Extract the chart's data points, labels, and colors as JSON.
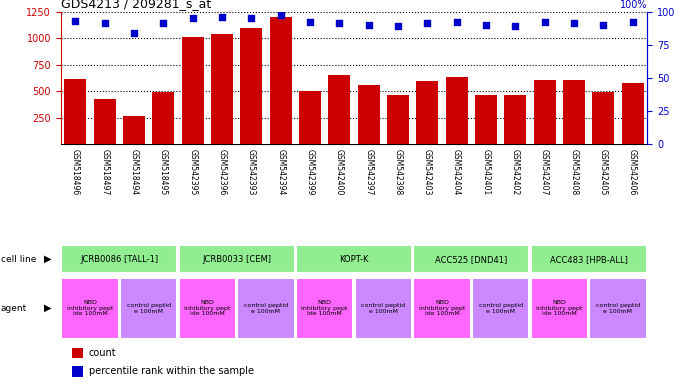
{
  "title": "GDS4213 / 209281_s_at",
  "samples": [
    "GSM518496",
    "GSM518497",
    "GSM518494",
    "GSM518495",
    "GSM542395",
    "GSM542396",
    "GSM542393",
    "GSM542394",
    "GSM542399",
    "GSM542400",
    "GSM542397",
    "GSM542398",
    "GSM542403",
    "GSM542404",
    "GSM542401",
    "GSM542402",
    "GSM542407",
    "GSM542408",
    "GSM542405",
    "GSM542406"
  ],
  "counts": [
    610,
    420,
    260,
    490,
    1010,
    1040,
    1090,
    1200,
    500,
    650,
    560,
    460,
    590,
    630,
    460,
    460,
    600,
    600,
    490,
    580
  ],
  "percentile": [
    93,
    91,
    84,
    91,
    95,
    96,
    95,
    97,
    92,
    91,
    90,
    89,
    91,
    92,
    90,
    89,
    92,
    91,
    90,
    92
  ],
  "cell_lines": [
    {
      "label": "JCRB0086 [TALL-1]",
      "start": 0,
      "end": 4,
      "color": "#90EE90"
    },
    {
      "label": "JCRB0033 [CEM]",
      "start": 4,
      "end": 8,
      "color": "#90EE90"
    },
    {
      "label": "KOPT-K",
      "start": 8,
      "end": 12,
      "color": "#90EE90"
    },
    {
      "label": "ACC525 [DND41]",
      "start": 12,
      "end": 16,
      "color": "#90EE90"
    },
    {
      "label": "ACC483 [HPB-ALL]",
      "start": 16,
      "end": 20,
      "color": "#90EE90"
    }
  ],
  "agents": [
    {
      "label": "NBD\ninhibitory pept\nide 100mM",
      "start": 0,
      "end": 2,
      "color": "#FF66FF"
    },
    {
      "label": "control peptid\ne 100mM",
      "start": 2,
      "end": 4,
      "color": "#CC88FF"
    },
    {
      "label": "NBD\ninhibitory pept\nide 100mM",
      "start": 4,
      "end": 6,
      "color": "#FF66FF"
    },
    {
      "label": "control peptid\ne 100mM",
      "start": 6,
      "end": 8,
      "color": "#CC88FF"
    },
    {
      "label": "NBD\ninhibitory pept\nide 100mM",
      "start": 8,
      "end": 10,
      "color": "#FF66FF"
    },
    {
      "label": "control peptid\ne 100mM",
      "start": 10,
      "end": 12,
      "color": "#CC88FF"
    },
    {
      "label": "NBD\ninhibitory pept\nide 100mM",
      "start": 12,
      "end": 14,
      "color": "#FF66FF"
    },
    {
      "label": "control peptid\ne 100mM",
      "start": 14,
      "end": 16,
      "color": "#CC88FF"
    },
    {
      "label": "NBD\ninhibitory pept\nide 100mM",
      "start": 16,
      "end": 18,
      "color": "#FF66FF"
    },
    {
      "label": "control peptid\ne 100mM",
      "start": 18,
      "end": 20,
      "color": "#CC88FF"
    }
  ],
  "bar_color": "#CC0000",
  "dot_color": "#0000CC",
  "ylim_left": [
    0,
    1250
  ],
  "ylim_right": [
    0,
    100
  ],
  "yticks_left": [
    250,
    500,
    750,
    1000,
    1250
  ],
  "yticks_right": [
    0,
    25,
    50,
    75,
    100
  ],
  "n_samples": 20,
  "cell_line_row_label": "cell line",
  "agent_row_label": "agent",
  "legend_count": "count",
  "legend_pct": "percentile rank within the sample"
}
